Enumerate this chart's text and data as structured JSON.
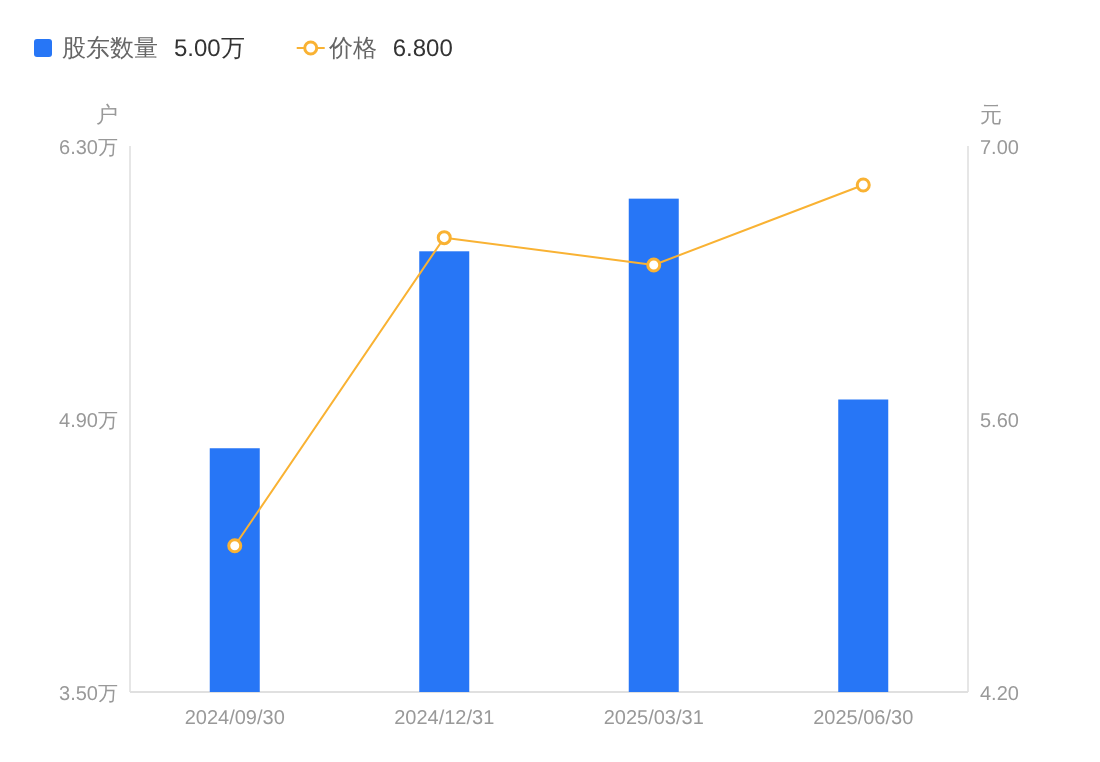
{
  "chart_data": {
    "type": "bar",
    "categories": [
      "2024/09/30",
      "2024/12/31",
      "2025/03/31",
      "2025/06/30"
    ],
    "series": [
      {
        "name": "股东数量",
        "color": "#2776f6",
        "values": [
          4.75,
          5.76,
          6.03,
          5.0
        ]
      },
      {
        "name": "价格",
        "type": "line",
        "axis": "y2",
        "color": "#f9b233",
        "marker": "circle",
        "values": [
          4.95,
          6.53,
          6.39,
          6.8
        ]
      }
    ],
    "ylabel": "户",
    "y2label": "元",
    "ylim": [
      3.5,
      6.3
    ],
    "yticks": [
      {
        "value": 3.5,
        "label": "3.50万"
      },
      {
        "value": 4.9,
        "label": "4.90万"
      },
      {
        "value": 6.3,
        "label": "6.30万"
      }
    ],
    "y2lim": [
      4.2,
      7.0
    ],
    "y2ticks": [
      {
        "value": 4.2,
        "label": "4.20"
      },
      {
        "value": 5.6,
        "label": "5.60"
      },
      {
        "value": 7.0,
        "label": "7.00"
      }
    ],
    "legend": "top left",
    "annotations": [
      "5.00万",
      "6.800"
    ]
  }
}
